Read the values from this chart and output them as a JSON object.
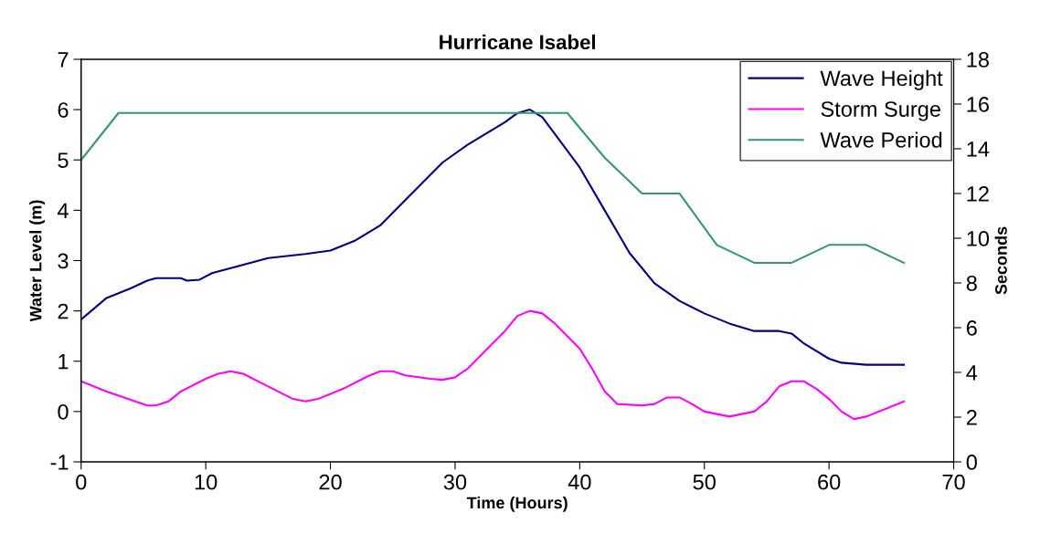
{
  "chart_data": {
    "type": "line",
    "title": "Hurricane Isabel",
    "xlabel": "Time (Hours)",
    "ylabel": "Water Level (m)",
    "y2label": "Seconds",
    "xlim": [
      0,
      70
    ],
    "xticks": [
      0,
      10,
      20,
      30,
      40,
      50,
      60,
      70
    ],
    "ylim": [
      -1,
      7
    ],
    "yticks": [
      -1,
      0,
      1,
      2,
      3,
      4,
      5,
      6,
      7
    ],
    "y2lim": [
      0,
      18
    ],
    "y2ticks": [
      0,
      2,
      4,
      6,
      8,
      10,
      12,
      14,
      16,
      18
    ],
    "grid": false,
    "legend": "top right",
    "marker": "none",
    "line_style": "solid",
    "series": [
      {
        "name": "Wave Height",
        "color": "#000080",
        "x": [
          0,
          2,
          4,
          5.3,
          6,
          8,
          8.5,
          9.5,
          10.5,
          12,
          15,
          18,
          20,
          22,
          24,
          26,
          28,
          29,
          31,
          32,
          34,
          35,
          36,
          37,
          40,
          42,
          44,
          45,
          46,
          48,
          50,
          52,
          54,
          56,
          57,
          58,
          60,
          61,
          63,
          66
        ],
        "values": [
          1.83,
          2.25,
          2.45,
          2.6,
          2.65,
          2.65,
          2.6,
          2.62,
          2.75,
          2.85,
          3.05,
          3.13,
          3.2,
          3.4,
          3.7,
          4.2,
          4.7,
          4.95,
          5.3,
          5.45,
          5.75,
          5.93,
          6.0,
          5.85,
          4.85,
          4.0,
          3.15,
          2.85,
          2.55,
          2.2,
          1.95,
          1.75,
          1.6,
          1.6,
          1.55,
          1.35,
          1.05,
          0.97,
          0.93,
          0.93
        ]
      },
      {
        "name": "Storm Surge",
        "color": "#ff00ff",
        "x": [
          0,
          2,
          5.3,
          6,
          7,
          8,
          10,
          11,
          12,
          13,
          15,
          17,
          18,
          19,
          21,
          23,
          24,
          25,
          26,
          28,
          29,
          30,
          31,
          32,
          33,
          34,
          35,
          36,
          37,
          38,
          40,
          41,
          42,
          43,
          45,
          46,
          47,
          48,
          49,
          50,
          52,
          53,
          54,
          55,
          56,
          57,
          58,
          59,
          60,
          61,
          62,
          63,
          66
        ],
        "values": [
          0.6,
          0.4,
          0.12,
          0.12,
          0.2,
          0.4,
          0.65,
          0.75,
          0.8,
          0.75,
          0.5,
          0.25,
          0.2,
          0.25,
          0.45,
          0.7,
          0.8,
          0.8,
          0.72,
          0.65,
          0.63,
          0.68,
          0.85,
          1.1,
          1.35,
          1.6,
          1.9,
          2.0,
          1.95,
          1.75,
          1.25,
          0.85,
          0.4,
          0.15,
          0.12,
          0.15,
          0.28,
          0.28,
          0.15,
          0.0,
          -0.1,
          -0.05,
          0.0,
          0.2,
          0.5,
          0.6,
          0.6,
          0.45,
          0.25,
          0.0,
          -0.15,
          -0.1,
          0.2
        ]
      },
      {
        "name": "Wave Period",
        "color": "#339966",
        "axis": "y2",
        "x": [
          0,
          3,
          39,
          42,
          45,
          48,
          51,
          54,
          57,
          60,
          63,
          66
        ],
        "values": [
          13.5,
          15.6,
          15.6,
          13.6,
          12.0,
          12.0,
          9.7,
          8.9,
          8.9,
          9.7,
          9.7,
          8.9
        ]
      }
    ]
  }
}
